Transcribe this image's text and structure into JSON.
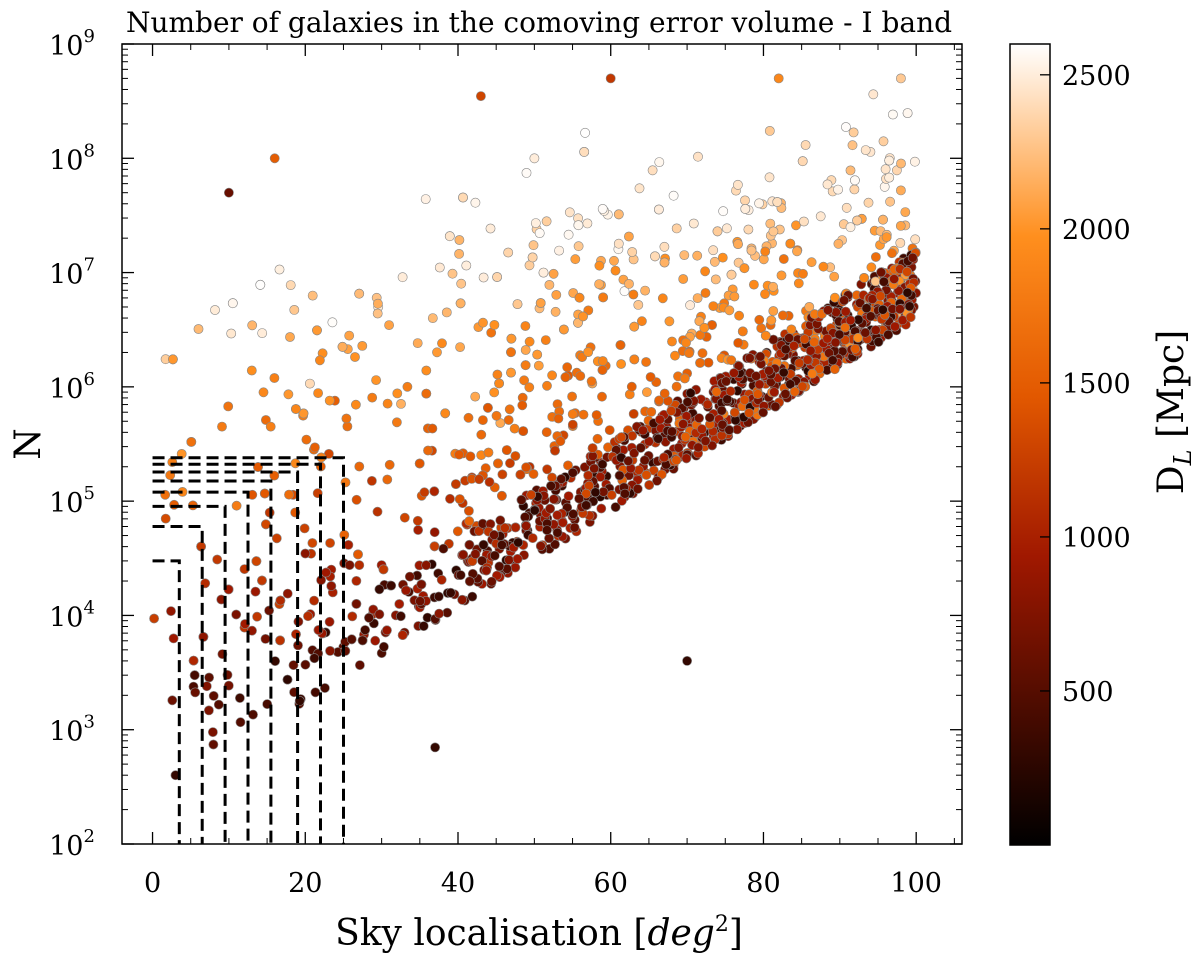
{
  "chart_data": {
    "type": "scatter",
    "title": "Number of galaxies in the comoving error volume - I band",
    "xlabel_prefix": "Sky localisation [",
    "xlabel_var": "deg",
    "xlabel_exp": "2",
    "xlabel_suffix": "]",
    "ylabel": "N",
    "xlim": [
      -4,
      106
    ],
    "ylim_log10": [
      2,
      9
    ],
    "x_ticks": [
      0,
      20,
      40,
      60,
      80,
      100
    ],
    "x_tick_labels": [
      "0",
      "20",
      "40",
      "60",
      "80",
      "100"
    ],
    "y_ticks_log10": [
      2,
      3,
      4,
      5,
      6,
      7,
      8,
      9
    ],
    "y_tick_base": "10",
    "y_tick_exps": [
      "2",
      "3",
      "4",
      "5",
      "6",
      "7",
      "8",
      "9"
    ],
    "colorbar": {
      "label_main": "D",
      "label_sub": "L",
      "label_unit": " [Mpc]",
      "range": [
        0,
        2600
      ],
      "ticks": [
        500,
        1000,
        1500,
        2000,
        2500
      ],
      "tick_labels": [
        "500",
        "1000",
        "1500",
        "2000",
        "2500"
      ],
      "cmap": "gist_heat"
    },
    "dashed_boxes": [
      {
        "x": 3.5,
        "n": 30000
      },
      {
        "x": 6.5,
        "n": 60000
      },
      {
        "x": 9.5,
        "n": 90000
      },
      {
        "x": 12.5,
        "n": 120000
      },
      {
        "x": 15.5,
        "n": 150000
      },
      {
        "x": 19.0,
        "n": 180000
      },
      {
        "x": 22.0,
        "n": 210000
      },
      {
        "x": 25.0,
        "n": 240000
      }
    ],
    "points_note": "~2000 galaxies; N rises with sky localisation, colour = luminosity distance D_L",
    "sample_points": [
      {
        "x": 3,
        "n": 400,
        "dl": 300
      },
      {
        "x": 10,
        "n": 50000000,
        "dl": 600
      },
      {
        "x": 16,
        "n": 100000000,
        "dl": 1500
      },
      {
        "x": 37,
        "n": 700,
        "dl": 300
      },
      {
        "x": 43,
        "n": 350000000,
        "dl": 1300
      },
      {
        "x": 50,
        "n": 100000000,
        "dl": 2500
      },
      {
        "x": 60,
        "n": 500000000,
        "dl": 1200
      },
      {
        "x": 70,
        "n": 4000,
        "dl": 300
      },
      {
        "x": 82,
        "n": 500000000,
        "dl": 1900
      },
      {
        "x": 98,
        "n": 500000000,
        "dl": 2300
      }
    ]
  }
}
